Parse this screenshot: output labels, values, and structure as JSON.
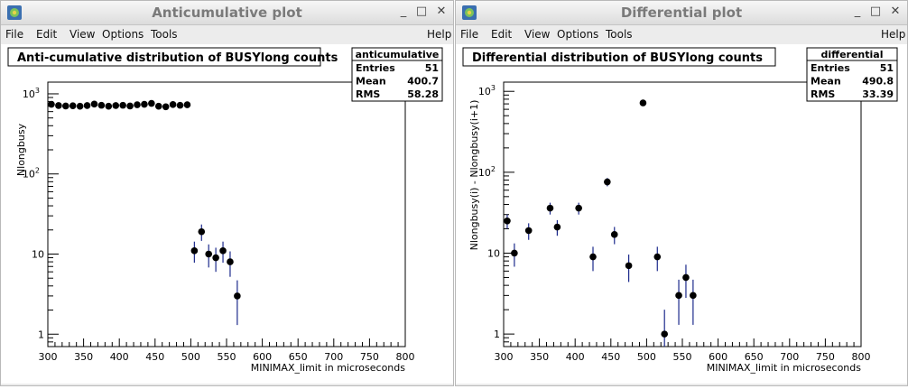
{
  "windows": [
    {
      "title": "Anticumulative plot",
      "menu": {
        "items": [
          "File",
          "Edit",
          "View",
          "Options",
          "Tools"
        ],
        "help": "Help"
      },
      "buttons": {
        "minimize": "_",
        "maximize": "□",
        "close": "✕"
      }
    },
    {
      "title": "Differential plot",
      "menu": {
        "items": [
          "File",
          "Edit",
          "View",
          "Options",
          "Tools"
        ],
        "help": "Help"
      },
      "buttons": {
        "minimize": "_",
        "maximize": "□",
        "close": "✕"
      }
    }
  ],
  "chart_data": [
    {
      "type": "scatter",
      "title": "Anti-cumulative distribution of BUSYlong counts",
      "xlabel": "MINIMAX_limit in microseconds",
      "ylabel": "Nlongbusy",
      "xlim": [
        300,
        800
      ],
      "ylim": [
        0.7,
        1400
      ],
      "yscale": "log",
      "grid": false,
      "x_ticks": [
        300,
        350,
        400,
        450,
        500,
        550,
        600,
        650,
        700,
        750,
        800
      ],
      "y_ticks": [
        {
          "value": 1,
          "label": "1"
        },
        {
          "value": 10,
          "label": "10"
        },
        {
          "value": 100,
          "label": "10",
          "exp": "2"
        },
        {
          "value": 1000,
          "label": "10",
          "exp": "3"
        }
      ],
      "stats": {
        "name": "anticumulative",
        "rows": [
          {
            "label": "Entries",
            "value": "51"
          },
          {
            "label": "Mean",
            "value": "400.7"
          },
          {
            "label": "RMS",
            "value": "58.28"
          }
        ]
      },
      "points": [
        {
          "x": 305,
          "y": 740,
          "lo": 713,
          "hi": 767
        },
        {
          "x": 315,
          "y": 715,
          "lo": 688,
          "hi": 742
        },
        {
          "x": 325,
          "y": 705,
          "lo": 679,
          "hi": 731
        },
        {
          "x": 335,
          "y": 710,
          "lo": 684,
          "hi": 736
        },
        {
          "x": 345,
          "y": 700,
          "lo": 674,
          "hi": 726
        },
        {
          "x": 355,
          "y": 715,
          "lo": 688,
          "hi": 742
        },
        {
          "x": 365,
          "y": 745,
          "lo": 718,
          "hi": 772
        },
        {
          "x": 375,
          "y": 720,
          "lo": 693,
          "hi": 747
        },
        {
          "x": 385,
          "y": 700,
          "lo": 674,
          "hi": 726
        },
        {
          "x": 395,
          "y": 715,
          "lo": 688,
          "hi": 742
        },
        {
          "x": 405,
          "y": 720,
          "lo": 693,
          "hi": 747
        },
        {
          "x": 415,
          "y": 705,
          "lo": 679,
          "hi": 731
        },
        {
          "x": 425,
          "y": 730,
          "lo": 703,
          "hi": 757
        },
        {
          "x": 435,
          "y": 740,
          "lo": 713,
          "hi": 767
        },
        {
          "x": 445,
          "y": 760,
          "lo": 732,
          "hi": 788
        },
        {
          "x": 455,
          "y": 700,
          "lo": 674,
          "hi": 726
        },
        {
          "x": 465,
          "y": 690,
          "lo": 664,
          "hi": 716
        },
        {
          "x": 475,
          "y": 735,
          "lo": 708,
          "hi": 762
        },
        {
          "x": 485,
          "y": 720,
          "lo": 693,
          "hi": 747
        },
        {
          "x": 495,
          "y": 730,
          "lo": 703,
          "hi": 757
        },
        {
          "x": 505,
          "y": 11,
          "lo": 7.8,
          "hi": 14.3
        },
        {
          "x": 515,
          "y": 19,
          "lo": 14.6,
          "hi": 23.4
        },
        {
          "x": 525,
          "y": 10,
          "lo": 6.8,
          "hi": 13.2
        },
        {
          "x": 535,
          "y": 9,
          "lo": 6.0,
          "hi": 12.0
        },
        {
          "x": 545,
          "y": 11,
          "lo": 7.8,
          "hi": 14.3
        },
        {
          "x": 555,
          "y": 8,
          "lo": 5.2,
          "hi": 10.8
        },
        {
          "x": 565,
          "y": 3,
          "lo": 1.3,
          "hi": 4.7
        }
      ]
    },
    {
      "type": "scatter",
      "title": "Differential distribution of BUSYlong counts",
      "xlabel": "MINIMAX_limit in microseconds",
      "ylabel": "Nlongbusy(i) - Nlongbusy(i+1)",
      "xlim": [
        300,
        800
      ],
      "ylim": [
        0.7,
        1300
      ],
      "yscale": "log",
      "grid": false,
      "x_ticks": [
        300,
        350,
        400,
        450,
        500,
        550,
        600,
        650,
        700,
        750,
        800
      ],
      "y_ticks": [
        {
          "value": 1,
          "label": "1"
        },
        {
          "value": 10,
          "label": "10"
        },
        {
          "value": 100,
          "label": "10",
          "exp": "2"
        },
        {
          "value": 1000,
          "label": "10",
          "exp": "3"
        }
      ],
      "stats": {
        "name": "differential",
        "rows": [
          {
            "label": "Entries",
            "value": "51"
          },
          {
            "label": "Mean",
            "value": "490.8"
          },
          {
            "label": "RMS",
            "value": "33.39"
          }
        ]
      },
      "points": [
        {
          "x": 305,
          "y": 25,
          "lo": 20,
          "hi": 30
        },
        {
          "x": 315,
          "y": 10,
          "lo": 6.8,
          "hi": 13.2
        },
        {
          "x": 335,
          "y": 19,
          "lo": 14.6,
          "hi": 23.4
        },
        {
          "x": 365,
          "y": 36,
          "lo": 30,
          "hi": 42
        },
        {
          "x": 375,
          "y": 21,
          "lo": 16.4,
          "hi": 25.6
        },
        {
          "x": 405,
          "y": 36,
          "lo": 30,
          "hi": 42
        },
        {
          "x": 425,
          "y": 9,
          "lo": 6.0,
          "hi": 12.0
        },
        {
          "x": 445,
          "y": 76,
          "lo": 67,
          "hi": 85
        },
        {
          "x": 455,
          "y": 17,
          "lo": 12.9,
          "hi": 21.1
        },
        {
          "x": 475,
          "y": 7,
          "lo": 4.4,
          "hi": 9.6
        },
        {
          "x": 495,
          "y": 720,
          "lo": 693,
          "hi": 747
        },
        {
          "x": 515,
          "y": 9,
          "lo": 6.0,
          "hi": 12.0
        },
        {
          "x": 525,
          "y": 1,
          "lo": 0.7,
          "hi": 2.0
        },
        {
          "x": 545,
          "y": 3,
          "lo": 1.3,
          "hi": 4.7
        },
        {
          "x": 555,
          "y": 5,
          "lo": 2.8,
          "hi": 7.2
        },
        {
          "x": 565,
          "y": 3,
          "lo": 1.3,
          "hi": 4.7
        }
      ]
    }
  ]
}
